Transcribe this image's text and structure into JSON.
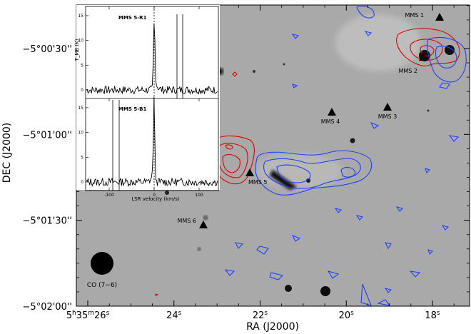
{
  "chart_data": {
    "type": "scatter",
    "xlabel": "RA (J2000)",
    "ylabel": "DEC (J2000)",
    "x_axis": {
      "ticks": [
        {
          "s": 26,
          "text": "5h35m26s",
          "parts": [
            "5",
            "h",
            "35",
            "m",
            "26",
            "s"
          ]
        },
        {
          "s": 24,
          "text": "24s",
          "parts": [
            "24",
            "s"
          ]
        },
        {
          "s": 22,
          "text": "22s",
          "parts": [
            "22",
            "s"
          ]
        },
        {
          "s": 20,
          "text": "20s",
          "parts": [
            "20",
            "s"
          ]
        },
        {
          "s": 18,
          "text": "18s",
          "parts": [
            "18",
            "s"
          ]
        }
      ]
    },
    "y_axis": {
      "ticks": [
        {
          "v": 30,
          "text": "−5°00'30''"
        },
        {
          "v": 60,
          "text": "−5°01'00''"
        },
        {
          "v": 90,
          "text": "−5°01'30''"
        },
        {
          "v": 120,
          "text": "−5°02'00''"
        }
      ]
    },
    "sources": [
      {
        "name": "MMS 1",
        "ra_s": 18.0,
        "dec_off": 8
      },
      {
        "name": "MMS 2",
        "ra_s": 18.35,
        "dec_off": 36
      },
      {
        "name": "MMS 3",
        "ra_s": 19.2,
        "dec_off": 50
      },
      {
        "name": "MMS 4",
        "ra_s": 20.55,
        "dec_off": 52
      },
      {
        "name": "MMS 5",
        "ra_s": 22.4,
        "dec_off": 74
      },
      {
        "name": "MMS 6",
        "ra_s": 23.5,
        "dec_off": 95
      }
    ],
    "beam_label": "CO (7−6)",
    "inset": {
      "xlabel": "LSR velocity (km/s)",
      "ylabel": "T_MB (K)",
      "x_ticks": [
        -100,
        0,
        100
      ],
      "y_ticks": [
        0,
        5,
        10,
        15
      ],
      "panels": [
        {
          "name": "MMS 5-R1"
        },
        {
          "name": "MMS 5-B1"
        }
      ]
    }
  }
}
